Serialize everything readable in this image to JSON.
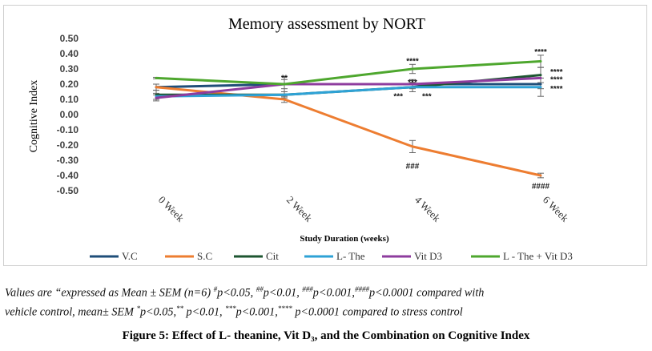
{
  "chart_data": {
    "type": "line",
    "title": "Memory assessment by NORT",
    "xlabel": "Study Duration (weeks)",
    "ylabel": "Cognitive Index",
    "categories": [
      "0 Week",
      "2 Week",
      "4 Week",
      "6 Week"
    ],
    "ylim": [
      -0.5,
      0.5
    ],
    "yticks": [
      0.5,
      0.4,
      0.3,
      0.2,
      0.1,
      0.0,
      -0.1,
      -0.2,
      -0.3,
      -0.4,
      -0.5
    ],
    "ytick_labels": [
      "0.50",
      "0.40",
      "0.30",
      "0.20",
      "0.10",
      "0.00",
      "-0.10",
      "-0.20",
      "-0.30",
      "-0.40",
      "-0.50"
    ],
    "grid": false,
    "legend_position": "bottom",
    "series": [
      {
        "name": "V.C",
        "color": "#1f4e79",
        "values": [
          0.18,
          0.2,
          0.2,
          0.2
        ],
        "errors": [
          0.0,
          0.0,
          0.0,
          0.0
        ]
      },
      {
        "name": "S.C",
        "color": "#ed7d31",
        "values": [
          0.18,
          0.1,
          -0.21,
          -0.4
        ],
        "errors": [
          0.02,
          0.02,
          0.04,
          0.015
        ]
      },
      {
        "name": "Cit",
        "color": "#1e5631",
        "values": [
          0.13,
          0.13,
          0.18,
          0.26
        ],
        "errors": [
          0.03,
          0.02,
          0.03,
          0.05
        ]
      },
      {
        "name": "L- The",
        "color": "#2ea2d6",
        "values": [
          0.12,
          0.13,
          0.18,
          0.18
        ],
        "errors": [
          0.02,
          0.02,
          0.03,
          0.06
        ]
      },
      {
        "name": "Vit D3",
        "color": "#8e3c9e",
        "values": [
          0.11,
          0.2,
          0.2,
          0.24
        ],
        "errors": [
          0.02,
          0.03,
          0.03,
          0.07
        ]
      },
      {
        "name": "L - The + Vit D3",
        "color": "#4ea72e",
        "values": [
          0.24,
          0.2,
          0.3,
          0.35
        ],
        "errors": [
          0.005,
          0.05,
          0.03,
          0.04
        ]
      }
    ],
    "annotations": [
      {
        "text": "**",
        "cat": 1,
        "y": 0.245
      },
      {
        "text": "****",
        "cat": 2,
        "y": 0.355
      },
      {
        "text": "***",
        "cat": 2,
        "y": 0.215
      },
      {
        "text": "***",
        "cat": 2,
        "y": 0.125,
        "side": "left"
      },
      {
        "text": "***",
        "cat": 2,
        "y": 0.125,
        "side": "right"
      },
      {
        "text": "###",
        "cat": 2,
        "y": -0.335
      },
      {
        "text": "****",
        "cat": 3,
        "y": 0.415
      },
      {
        "text": "****",
        "cat": 3,
        "y": 0.285,
        "side": "right"
      },
      {
        "text": "****",
        "cat": 3,
        "y": 0.235,
        "side": "right"
      },
      {
        "text": "****",
        "cat": 3,
        "y": 0.175,
        "side": "right"
      },
      {
        "text": "####",
        "cat": 3,
        "y": -0.465
      }
    ]
  },
  "caption": {
    "line1_a": "Values are “expressed as Mean ± SEM (n=6) ",
    "sup1": "#",
    "line1_b": "p<0.05, ",
    "sup2": "##",
    "line1_c": "p<0.01, ",
    "sup3": "###",
    "line1_d": "p<0.001,",
    "sup4": "####",
    "line1_e": "p<0.0001 compared  with",
    "line2_a": "vehicle control, mean± SEM ",
    "sup5": "*",
    "line2_b": "p<0.05,",
    "sup6": "**",
    "line2_c": " p<0.01, ",
    "sup7": "***",
    "line2_d": "p<0.001,",
    "sup8": "****",
    "line2_e": " p<0.0001 compared to stress control"
  },
  "figure_title": "Figure 5: Effect of L- theanine, Vit D₃, and the Combination on Cognitive Index"
}
